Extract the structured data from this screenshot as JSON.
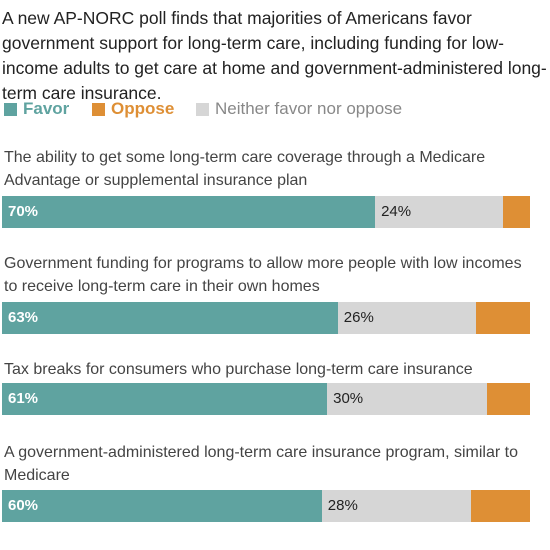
{
  "chart_data": {
    "type": "stacked-bar",
    "subtitle": "A new AP-NORC poll finds that majorities of Americans favor government support for long-term care, including funding for low-income adults to get care at home and government-administered long-term care insurance.",
    "categories": [
      "The ability to get some long-term care coverage through a Medicare Advantage or supplemental insurance plan",
      "Government funding for programs to allow more people with low incomes to receive long-term care in their own homes",
      "Tax breaks for consumers who purchase long-term care insurance",
      "A government-administered long-term care insurance program, similar to Medicare"
    ],
    "xlim": [
      0,
      100
    ],
    "series": [
      {
        "name": "Favor",
        "color": "#5fa3a0",
        "values": [
          70,
          63,
          61,
          60
        ],
        "value_labels": [
          "70%",
          "63%",
          "61%",
          "60%"
        ]
      },
      {
        "name": "Neither favor nor oppose",
        "color": "#d6d6d6",
        "values": [
          24,
          26,
          30,
          28
        ],
        "value_labels": [
          "24%",
          "26%",
          "30%",
          "28%"
        ]
      },
      {
        "name": "Oppose",
        "color": "#de8f35",
        "values": [
          5,
          10,
          8,
          11
        ]
      }
    ],
    "legend_order": [
      0,
      2,
      1
    ]
  }
}
